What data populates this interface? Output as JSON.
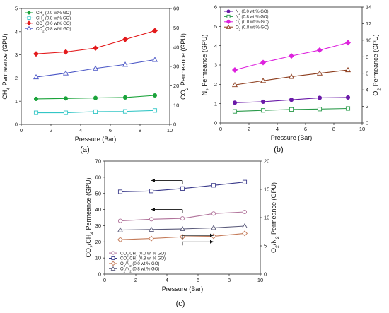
{
  "chart_data": [
    {
      "type": "line",
      "panel_label": "(a)",
      "xlabel": "Pressure (Bar)",
      "ylabel": "CH4 Permeance (GPU)",
      "y2label": "CO2 Permeance (GPU)",
      "xlim": [
        0,
        10
      ],
      "ylim": [
        0,
        5
      ],
      "y2lim": [
        0,
        60
      ],
      "xticks": [
        0,
        2,
        4,
        6,
        8,
        10
      ],
      "yticks": [
        0,
        1,
        2,
        3,
        4,
        5
      ],
      "y2ticks": [
        0,
        10,
        20,
        30,
        40,
        50,
        60
      ],
      "legend_position": "top-left",
      "series": [
        {
          "name": "CH4 (0.0 wt% GO)",
          "axis": "left",
          "color": "#1aa33a",
          "marker": "circle",
          "filled": true,
          "x": [
            1,
            3,
            5,
            7,
            9
          ],
          "y": [
            1.1,
            1.12,
            1.14,
            1.16,
            1.25
          ]
        },
        {
          "name": "CH4 (0.8 wt% GO)",
          "axis": "left",
          "color": "#33c6c6",
          "marker": "square",
          "filled": false,
          "x": [
            1,
            3,
            5,
            7,
            9
          ],
          "y": [
            0.5,
            0.5,
            0.55,
            0.56,
            0.6
          ]
        },
        {
          "name": "CO2 (0.0 wt% GO)",
          "axis": "right",
          "color": "#e31a1c",
          "marker": "diamond",
          "filled": true,
          "x": [
            1,
            3,
            5,
            7,
            9
          ],
          "y": [
            36.5,
            37.5,
            39.5,
            44,
            48.5
          ]
        },
        {
          "name": "CO2 (0.8 wt% GO)",
          "axis": "right",
          "color": "#4a56c6",
          "marker": "triangle",
          "filled": false,
          "x": [
            1,
            3,
            5,
            7,
            9
          ],
          "y": [
            24.5,
            26.5,
            29,
            31,
            33.5
          ]
        }
      ]
    },
    {
      "type": "line",
      "panel_label": "(b)",
      "xlabel": "Pressure (Bar)",
      "ylabel": "N2 Permeance (GPU)",
      "y2label": "O2 Permeance (GPU)",
      "xlim": [
        0,
        10
      ],
      "ylim": [
        0,
        6
      ],
      "y2lim": [
        0,
        14
      ],
      "xticks": [
        0,
        2,
        4,
        6,
        8,
        10
      ],
      "yticks": [
        0,
        1,
        2,
        3,
        4,
        5,
        6
      ],
      "y2ticks": [
        0,
        2,
        4,
        6,
        8,
        10,
        12,
        14
      ],
      "legend_position": "top-left",
      "series": [
        {
          "name": "N2 (0.0 wt % GO)",
          "axis": "left",
          "color": "#6a1aa8",
          "marker": "circle",
          "filled": true,
          "x": [
            1,
            3,
            5,
            7,
            9
          ],
          "y": [
            1.05,
            1.1,
            1.2,
            1.3,
            1.32
          ]
        },
        {
          "name": "N2 (0.8 wt % GO)",
          "axis": "left",
          "color": "#2a9a4a",
          "marker": "square",
          "filled": false,
          "x": [
            1,
            3,
            5,
            7,
            9
          ],
          "y": [
            0.6,
            0.65,
            0.7,
            0.72,
            0.75
          ]
        },
        {
          "name": "O2 (0.0 wt % GO)",
          "axis": "right",
          "color": "#dd22dd",
          "marker": "diamond",
          "filled": true,
          "x": [
            1,
            3,
            5,
            7,
            9
          ],
          "y": [
            6.4,
            7.3,
            8.1,
            8.8,
            9.7
          ]
        },
        {
          "name": "O2 (0.8 wt % GO)",
          "axis": "right",
          "color": "#8b3a1a",
          "marker": "triangle",
          "filled": false,
          "x": [
            1,
            3,
            5,
            7,
            9
          ],
          "y": [
            4.6,
            5.1,
            5.6,
            6.0,
            6.4
          ]
        }
      ]
    },
    {
      "type": "line",
      "panel_label": "(c)",
      "xlabel": "Pressure (Bar)",
      "ylabel": "CO2/CH4 Permeance (GPU)",
      "y2label": "O2/N2 Permeance (GPU)",
      "xlim": [
        0,
        10
      ],
      "ylim": [
        0,
        70
      ],
      "y2lim": [
        0,
        20
      ],
      "xticks": [
        0,
        2,
        4,
        6,
        8,
        10
      ],
      "yticks": [
        0,
        10,
        20,
        30,
        40,
        50,
        60,
        70
      ],
      "y2ticks": [
        0,
        5,
        10,
        15,
        20
      ],
      "legend_position": "bottom-left",
      "series": [
        {
          "name": "CO2/CH4 (0.0 wt % GO)",
          "axis": "left",
          "color": "#b0729a",
          "marker": "circle",
          "filled": false,
          "x": [
            1,
            3,
            5,
            7,
            9
          ],
          "y": [
            33,
            34,
            34.5,
            37.5,
            38.5
          ]
        },
        {
          "name": "CO2/CH4 (0.8 wt % GO)",
          "axis": "left",
          "color": "#3a3a8a",
          "marker": "square",
          "filled": false,
          "x": [
            1,
            3,
            5,
            7,
            9
          ],
          "y": [
            51,
            51.5,
            53,
            55,
            57
          ]
        },
        {
          "name": "O2/N2 (0.0 wt % GO)",
          "axis": "right",
          "color": "#c47a58",
          "marker": "diamond",
          "filled": false,
          "x": [
            1,
            3,
            5,
            7,
            9
          ],
          "y": [
            6.1,
            6.3,
            6.6,
            6.7,
            7.2
          ]
        },
        {
          "name": "O2/N2 (0.8 wt % GO)",
          "axis": "right",
          "color": "#5a5a7a",
          "marker": "triangle",
          "filled": false,
          "x": [
            1,
            3,
            5,
            7,
            9
          ],
          "y": [
            7.8,
            7.9,
            8.0,
            8.2,
            8.5
          ]
        }
      ],
      "annotations": [
        {
          "type": "arrow",
          "direction": "left",
          "axis": "left",
          "x_from": 5,
          "x_to": 3,
          "y": 58
        },
        {
          "type": "arrow",
          "direction": "left",
          "axis": "left",
          "x_from": 5,
          "x_to": 3,
          "y": 40
        },
        {
          "type": "arrow",
          "direction": "right",
          "axis": "left",
          "x_from": 5,
          "x_to": 7,
          "y": 24
        },
        {
          "type": "arrow",
          "direction": "right",
          "axis": "left",
          "x_from": 5,
          "x_to": 7,
          "y": 20
        }
      ]
    }
  ]
}
